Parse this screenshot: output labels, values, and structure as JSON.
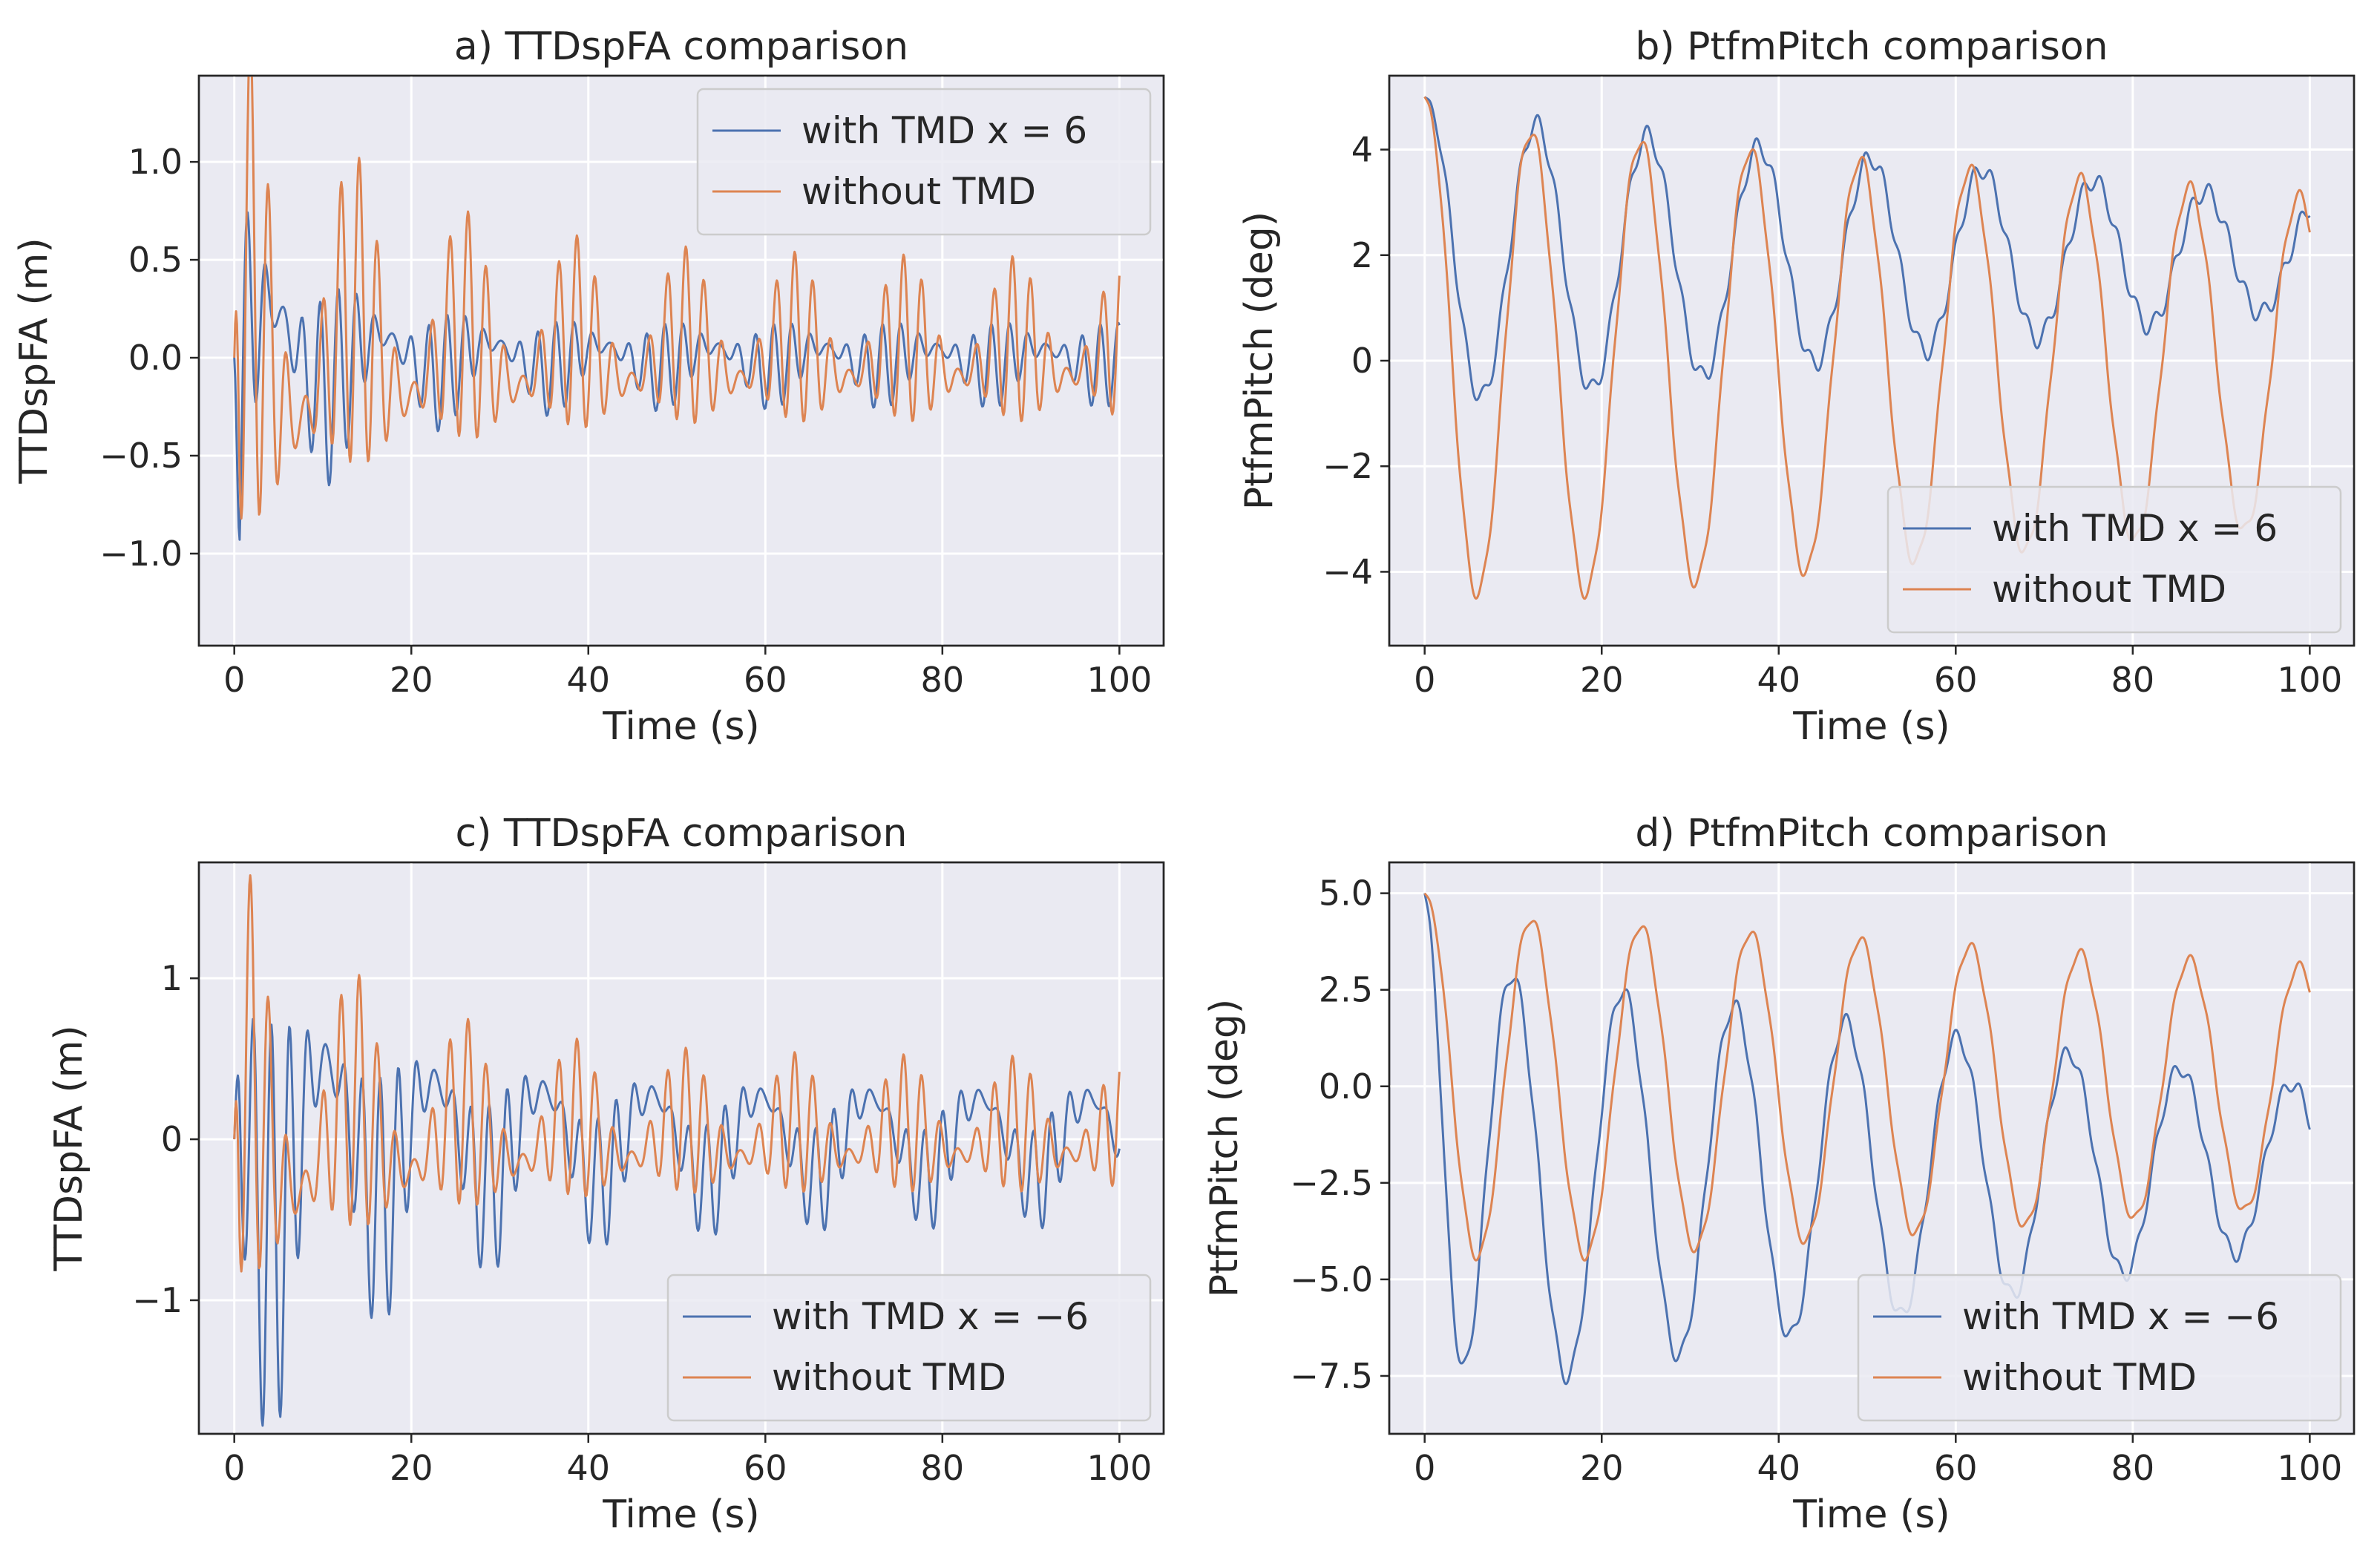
{
  "colors": {
    "with_tmd": "#4c72b0",
    "without_tmd": "#dd8452"
  },
  "chart_data": [
    {
      "type": "line",
      "title": "a) TTDspFA comparison",
      "xlabel": "Time (s)",
      "ylabel": "TTDspFA (m)",
      "xlim": [
        -4,
        105
      ],
      "ylim": [
        -1.47,
        1.44
      ],
      "xticks": [
        0,
        20,
        40,
        60,
        80,
        100
      ],
      "xtick_labels": [
        "0",
        "20",
        "40",
        "60",
        "80",
        "100"
      ],
      "yticks": [
        -1.0,
        -0.5,
        0.0,
        0.5,
        1.0
      ],
      "ytick_labels": [
        "−1.0",
        "−0.5",
        "0.0",
        "0.5",
        "1.0"
      ],
      "legend_position": "top-right",
      "series": [
        {
          "name": "with TMD x = 6",
          "color": "#4c72b0",
          "generator": "tower",
          "params": {
            "amp": 1.1,
            "decay": 0.035,
            "floor": 0.22,
            "seed": 1,
            "drift": 0.0
          }
        },
        {
          "name": "without TMD",
          "color": "#dd8452",
          "generator": "tower",
          "params": {
            "amp": 1.35,
            "decay": 0.022,
            "floor": 0.42,
            "seed": 2,
            "drift": 0.0
          }
        }
      ]
    },
    {
      "type": "line",
      "title": "b) PtfmPitch comparison",
      "xlabel": "Time (s)",
      "ylabel": "PtfmPitch (deg)",
      "xlim": [
        -4,
        105
      ],
      "ylim": [
        -5.4,
        5.4
      ],
      "xticks": [
        0,
        20,
        40,
        60,
        80,
        100
      ],
      "xtick_labels": [
        "0",
        "20",
        "40",
        "60",
        "80",
        "100"
      ],
      "yticks": [
        -4,
        -2,
        0,
        2,
        4
      ],
      "ytick_labels": [
        "−4",
        "−2",
        "0",
        "2",
        "4"
      ],
      "legend_position": "bottom-right",
      "series": [
        {
          "name": "with TMD x = 6",
          "color": "#4c72b0",
          "generator": "pitch",
          "params": {
            "start": 5.0,
            "period": 12.6,
            "phase": 0.0,
            "amp0": 2.8,
            "ampEnd": 1.0,
            "mean0": 1.9,
            "meanEnd": 2.0,
            "wob": 0.18
          }
        },
        {
          "name": "without TMD",
          "color": "#dd8452",
          "generator": "pitch",
          "params": {
            "start": 5.0,
            "period": 12.4,
            "phase": 0.2,
            "amp0": 4.6,
            "ampEnd": 3.1,
            "mean0": -0.1,
            "meanEnd": 0.0,
            "wob": 0.12
          }
        }
      ]
    },
    {
      "type": "line",
      "title": "c) TTDspFA comparison",
      "xlabel": "Time (s)",
      "ylabel": "TTDspFA (m)",
      "xlim": [
        -4,
        105
      ],
      "ylim": [
        -1.83,
        1.72
      ],
      "xticks": [
        0,
        20,
        40,
        60,
        80,
        100
      ],
      "xtick_labels": [
        "0",
        "20",
        "40",
        "60",
        "80",
        "100"
      ],
      "yticks": [
        -1,
        0,
        1
      ],
      "ytick_labels": [
        "−1",
        "0",
        "1"
      ],
      "legend_position": "bottom-right",
      "series": [
        {
          "name": "with TMD x = −6",
          "color": "#4c72b0",
          "generator": "tower",
          "params": {
            "amp": 1.6,
            "decay": 0.02,
            "floor": 0.32,
            "seed": 3,
            "drift": -0.2
          }
        },
        {
          "name": "without TMD",
          "color": "#dd8452",
          "generator": "tower",
          "params": {
            "amp": 1.35,
            "decay": 0.022,
            "floor": 0.42,
            "seed": 2,
            "drift": 0.0
          }
        }
      ]
    },
    {
      "type": "line",
      "title": "d) PtfmPitch comparison",
      "xlabel": "Time (s)",
      "ylabel": "PtfmPitch (deg)",
      "xlim": [
        -4,
        105
      ],
      "ylim": [
        -9.0,
        5.8
      ],
      "xticks": [
        0,
        20,
        40,
        60,
        80,
        100
      ],
      "xtick_labels": [
        "0",
        "20",
        "40",
        "60",
        "80",
        "100"
      ],
      "yticks": [
        -7.5,
        -5.0,
        -2.5,
        0.0,
        2.5,
        5.0
      ],
      "ytick_labels": [
        "−7.5",
        "−5.0",
        "−2.5",
        "0.0",
        "2.5",
        "5.0"
      ],
      "legend_position": "bottom-right",
      "series": [
        {
          "name": "with TMD x = −6",
          "color": "#4c72b0",
          "generator": "pitch",
          "params": {
            "start": 5.0,
            "period": 12.6,
            "phase": 1.4,
            "amp0": 5.7,
            "ampEnd": 2.0,
            "mean0": -2.5,
            "meanEnd": -2.0,
            "wob": 0.2
          }
        },
        {
          "name": "without TMD",
          "color": "#dd8452",
          "generator": "pitch",
          "params": {
            "start": 5.0,
            "period": 12.4,
            "phase": 0.2,
            "amp0": 4.6,
            "ampEnd": 3.1,
            "mean0": -0.1,
            "meanEnd": 0.0,
            "wob": 0.12
          }
        }
      ]
    }
  ]
}
